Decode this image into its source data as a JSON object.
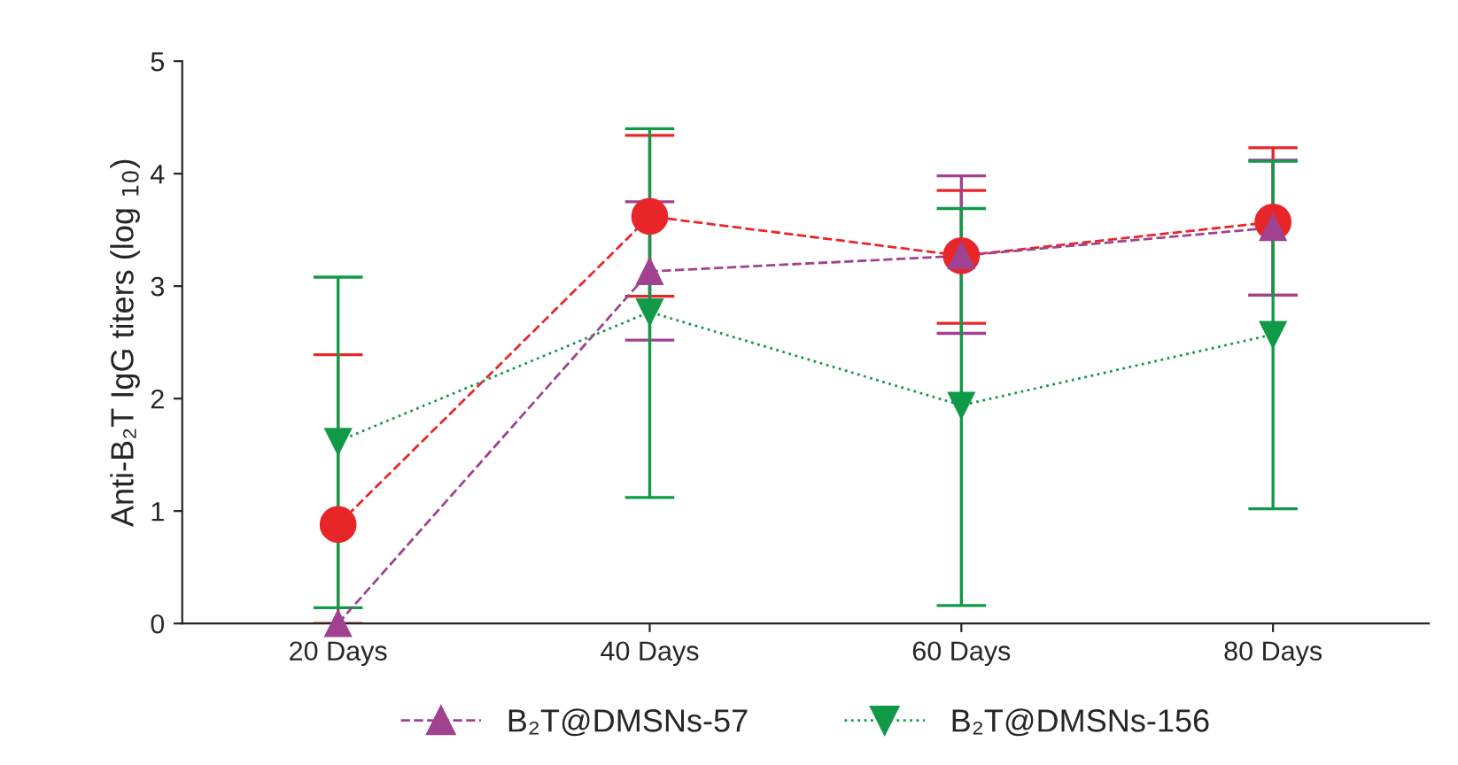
{
  "chart_data": {
    "type": "line",
    "ylabel": "Anti-B₂T IgG titers (log $_{10}$)",
    "categories": [
      "20 Days",
      "40 Days",
      "60 Days",
      "80 Days"
    ],
    "ylim": [
      0,
      5
    ],
    "yticks": [
      0,
      1,
      2,
      3,
      4,
      5
    ],
    "grid": false,
    "legend": "bottom",
    "series": [
      {
        "color": "#e8262a",
        "marker": "circle",
        "line_style": "dashed",
        "values": [
          0.88,
          3.62,
          3.27,
          3.57
        ],
        "errors": [
          [
            0,
            2.39
          ],
          [
            2.91,
            4.34
          ],
          [
            2.67,
            3.85
          ],
          [
            2.92,
            4.23
          ]
        ]
      },
      {
        "name": "B₂T@DMSNs-57",
        "color": "#a0428f",
        "marker": "triangle",
        "line_style": "dashed",
        "values": [
          0.0,
          3.13,
          3.27,
          3.52
        ],
        "errors": [
          null,
          [
            2.52,
            3.75
          ],
          [
            2.58,
            3.98
          ],
          [
            2.92,
            4.12
          ]
        ]
      },
      {
        "name": "B₂T@DMSNs-156",
        "color": "#109a48",
        "marker": "triangle_down",
        "line_style": "dotted",
        "values": [
          1.62,
          2.77,
          1.94,
          2.57
        ],
        "errors": [
          [
            0.14,
            3.08
          ],
          [
            1.12,
            4.4
          ],
          [
            0.16,
            3.69
          ],
          [
            1.02,
            4.11
          ]
        ]
      }
    ]
  }
}
